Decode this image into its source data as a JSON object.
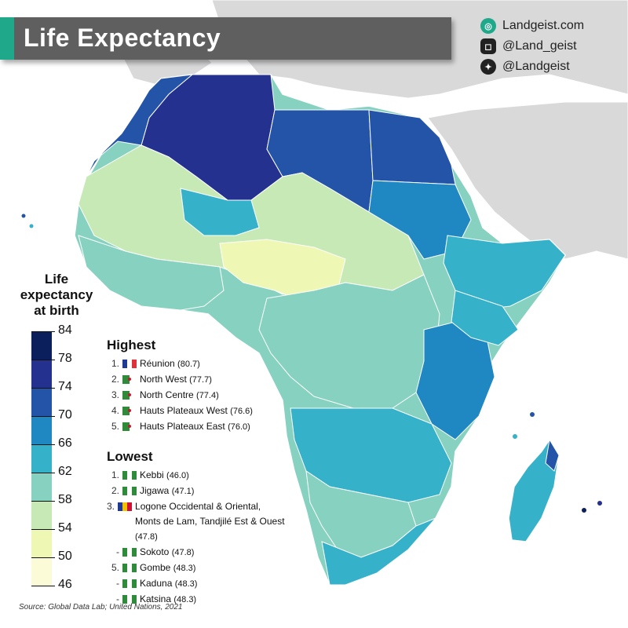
{
  "title": "Life Expectancy",
  "brand": {
    "website": "Landgeist.com",
    "instagram": "@Land_geist",
    "twitter": "@Landgeist",
    "icons": [
      "globe-icon",
      "instagram-icon",
      "twitter-icon"
    ]
  },
  "legend": {
    "title_line1": "Life",
    "title_line2": "expectancy",
    "title_line3": "at birth",
    "ticks": [
      "84",
      "78",
      "74",
      "70",
      "66",
      "62",
      "58",
      "54",
      "50",
      "46"
    ],
    "colors": [
      "#0a1f5c",
      "#24318f",
      "#2354a8",
      "#1f88c3",
      "#35b1ca",
      "#86d1bf",
      "#c7e9b6",
      "#eef7b4",
      "#fbfbd8"
    ]
  },
  "highest": {
    "heading": "Highest",
    "items": [
      {
        "rank": "1.",
        "flag": "fr",
        "name": "Réunion",
        "value": "(80.7)"
      },
      {
        "rank": "2.",
        "flag": "dz",
        "name": "North West",
        "value": "(77.7)"
      },
      {
        "rank": "3.",
        "flag": "dz",
        "name": "North Centre",
        "value": "(77.4)"
      },
      {
        "rank": "4.",
        "flag": "dz",
        "name": "Hauts Plateaux West",
        "value": "(76.6)"
      },
      {
        "rank": "5.",
        "flag": "dz",
        "name": "Hauts Plateaux East",
        "value": "(76.0)"
      }
    ]
  },
  "lowest": {
    "heading": "Lowest",
    "items": [
      {
        "rank": "1.",
        "flag": "ng",
        "name": "Kebbi",
        "value": "(46.0)"
      },
      {
        "rank": "2.",
        "flag": "ng",
        "name": "Jigawa",
        "value": "(47.1)"
      },
      {
        "rank": "3.",
        "flag": "td",
        "name": "Logone Occidental & Oriental, Monts de Lam, Tandjilé Est & Ouest",
        "value": "(47.8)"
      },
      {
        "rank": "-",
        "flag": "ng",
        "name": "Sokoto",
        "value": "(47.8)"
      },
      {
        "rank": "5.",
        "flag": "ng",
        "name": "Gombe",
        "value": "(48.3)"
      },
      {
        "rank": "-",
        "flag": "ng",
        "name": "Kaduna",
        "value": "(48.3)"
      },
      {
        "rank": "-",
        "flag": "ng",
        "name": "Katsina",
        "value": "(48.3)"
      }
    ]
  },
  "source": "Source: Global Data Lab; United Nations, 2021",
  "map_colors": {
    "ocean": "#ffffff",
    "other_land": "#d9d9d9"
  }
}
